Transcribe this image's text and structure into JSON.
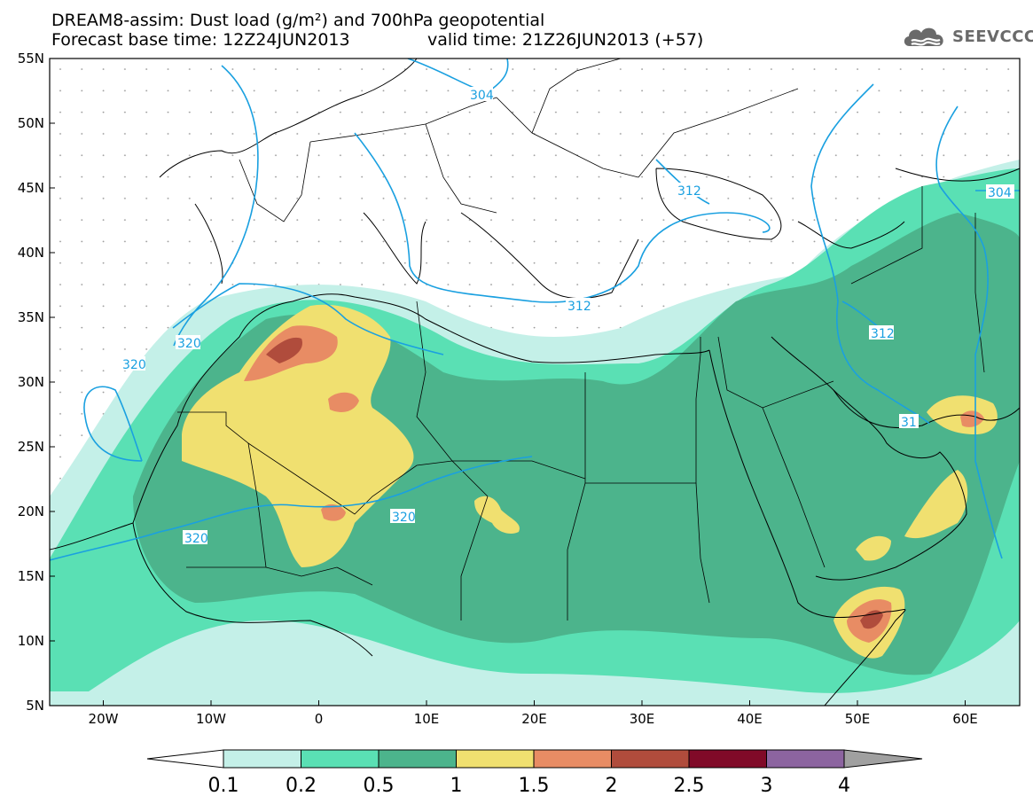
{
  "title": {
    "line1": "DREAM8-assim: Dust load (g/m²) and 700hPa geopotential",
    "line2": "Forecast base time: 12Z24JUN2013",
    "valid": "valid time: 21Z26JUN2013 (+57)"
  },
  "logo": {
    "text": "SEEVCCC",
    "icon": "cloud-icon"
  },
  "axes": {
    "lat_labels": [
      "55N",
      "50N",
      "45N",
      "40N",
      "35N",
      "30N",
      "25N",
      "20N",
      "15N",
      "10N",
      "5N"
    ],
    "lon_labels": [
      "20W",
      "10W",
      "0",
      "10E",
      "20E",
      "30E",
      "40E",
      "50E",
      "60E"
    ]
  },
  "contours": {
    "labels": [
      "304",
      "312",
      "320",
      "320",
      "320",
      "320",
      "312",
      "312",
      "312",
      "304",
      "31"
    ],
    "line_color": "#1aa0e0"
  },
  "colorbar": {
    "labels": [
      "0.1",
      "0.2",
      "0.5",
      "1",
      "1.5",
      "2",
      "2.5",
      "3",
      "4"
    ],
    "colors": [
      "#c4f0e8",
      "#5ae0b4",
      "#4cb48c",
      "#f0e070",
      "#e88c64",
      "#b04c3c",
      "#800a28",
      "#8c64a0",
      "#a0a0a0"
    ]
  },
  "dust_colors": {
    "c01": "#c4f0e8",
    "c02": "#5ae0b4",
    "c05": "#4cb48c",
    "c1": "#f0e070",
    "c15": "#e88c64",
    "c2": "#b04c3c"
  }
}
